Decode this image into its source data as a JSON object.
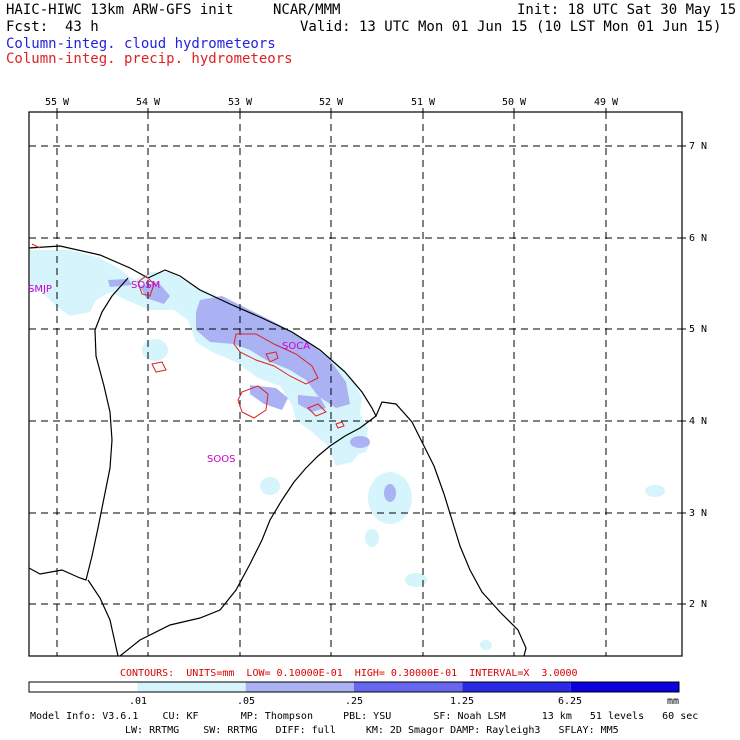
{
  "header": {
    "model_title": "HAIC-HIWC 13km ARW-GFS init",
    "org": "NCAR/MMM",
    "init": "Init: 18 UTC Sat 30 May 15",
    "fcst_label": "Fcst:",
    "fcst_value": "43 h",
    "valid": "Valid: 13 UTC Mon 01 Jun 15 (10 LST Mon 01 Jun 15)",
    "field_blue": "Column-integ. cloud hydrometeors",
    "field_red": "Column-integ. precip. hydrometeors"
  },
  "axes": {
    "lon_labels": [
      "55 W",
      "54 W",
      "53 W",
      "52 W",
      "51 W",
      "50 W",
      "49 W"
    ],
    "lat_labels": [
      "7 N",
      "6 N",
      "5 N",
      "4 N",
      "3 N",
      "2 N"
    ]
  },
  "stations": [
    "SMJP",
    "SOSM",
    "SOCA",
    "SOOS"
  ],
  "contour_info": "CONTOURS:  UNITS=mm  LOW= 0.10000E-01  HIGH= 0.30000E-01  INTERVAL=X  3.0000",
  "colorbar": {
    "labels": [
      ".01",
      ".05",
      ".25",
      "1.25",
      "6.25"
    ],
    "units": "mm",
    "colors": [
      "#ffffff",
      "#d6f4fb",
      "#aab2f4",
      "#6666f0",
      "#2a2ae6",
      "#0a00e0"
    ]
  },
  "model_info": {
    "line1": "Model Info: V3.6.1    CU: KF       MP: Thompson     PBL: YSU       SF: Noah LSM      13 km   51 levels   60 sec",
    "line2": "LW: RRTMG    SW: RRTMG   DIFF: full     KM: 2D Smagor DAMP: Rayleigh3   SFLAY: MM5"
  },
  "colors": {
    "cloud_light": "#d6f4fb",
    "cloud_mid": "#aab2f4",
    "precip_contour": "#dd2222",
    "station_label": "#cc00cc"
  }
}
